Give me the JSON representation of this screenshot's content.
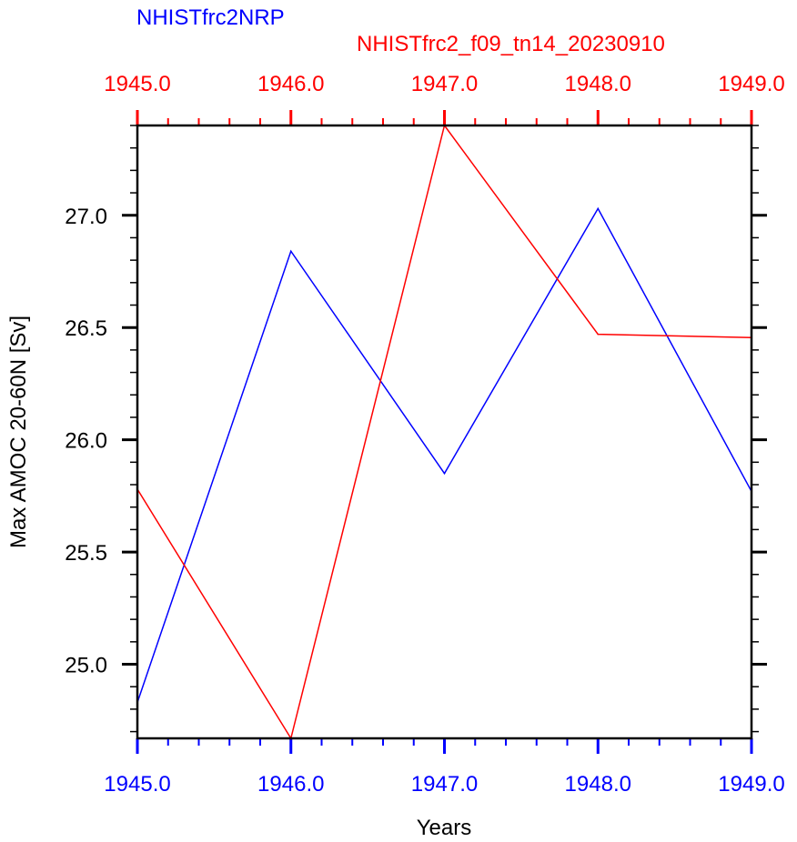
{
  "chart_data": {
    "type": "line",
    "top_title_series1": "NHISTfrc2NRP",
    "top_title_series2": "NHISTfrc2_f09_tn14_20230910",
    "xlabel": "Years",
    "ylabel": "Max AMOC 20-60N [Sv]",
    "xlim": [
      1945,
      1949
    ],
    "ylim": [
      24.67,
      27.4
    ],
    "x_ticks": [
      1945,
      1946,
      1947,
      1948,
      1949
    ],
    "x_tick_labels": [
      "1945.0",
      "1946.0",
      "1947.0",
      "1948.0",
      "1949.0"
    ],
    "y_ticks": [
      25.0,
      25.5,
      26.0,
      26.5,
      27.0
    ],
    "y_tick_labels": [
      "25.0",
      "25.5",
      "26.0",
      "26.5",
      "27.0"
    ],
    "x_minor_step": 0.2,
    "y_minor_step": 0.1,
    "grid": false,
    "series": [
      {
        "name": "NHISTfrc2NRP",
        "color": "#0000ff",
        "x": [
          1945,
          1946,
          1947,
          1948,
          1949
        ],
        "values": [
          24.83,
          26.84,
          25.85,
          27.03,
          25.77
        ]
      },
      {
        "name": "NHISTfrc2_f09_tn14_20230910",
        "color": "#ff0000",
        "x": [
          1945,
          1946,
          1947,
          1948,
          1949
        ],
        "values": [
          25.78,
          24.67,
          27.4,
          26.47,
          26.455
        ]
      }
    ]
  }
}
